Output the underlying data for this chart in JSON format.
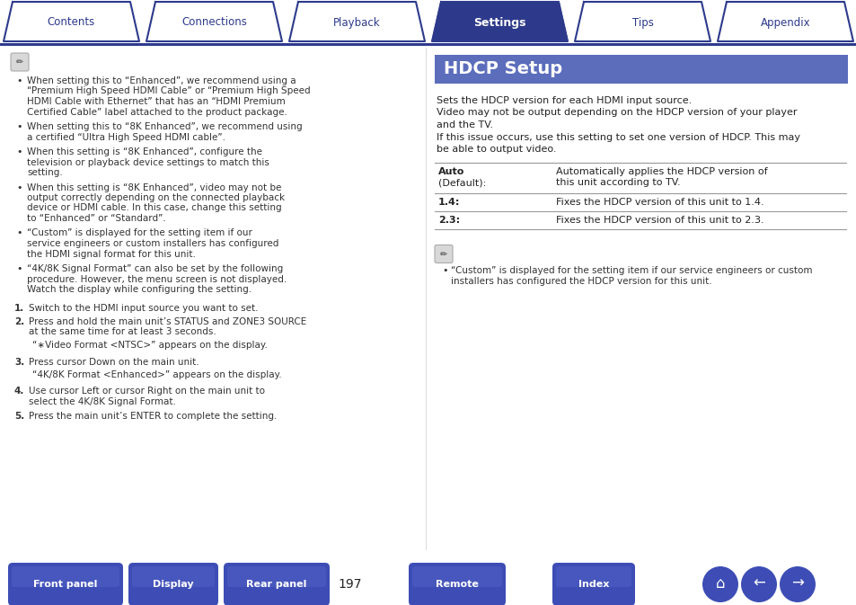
{
  "page_bg": "#ffffff",
  "top_nav": {
    "tabs": [
      "Contents",
      "Connections",
      "Playback",
      "Settings",
      "Tips",
      "Appendix"
    ],
    "active_tab": "Settings",
    "active_color": "#2d3a8c",
    "inactive_color": "#ffffff",
    "tab_text_color_inactive": "#2d3a8c",
    "tab_text_color_active": "#ffffff",
    "border_color": "#2d3a8c",
    "bar_color": "#2d3a8c"
  },
  "bottom_nav": {
    "buttons": [
      "Front panel",
      "Display",
      "Rear panel",
      "Remote",
      "Index"
    ],
    "page_number": "197",
    "button_color": "#3d4db5",
    "button_text_color": "#ffffff"
  },
  "left_panel": {
    "bullet_points": [
      "When setting this to “Enhanced”, we recommend using a “Premium High Speed HDMI Cable” or “Premium High Speed HDMI Cable with Ethernet” that has an “HDMI Premium Certified Cable” label attached to the product package.",
      "When setting this to “8K Enhanced”, we recommend using a certified “Ultra High Speed HDMI cable”.",
      "When this setting is “8K Enhanced”, configure the television or playback device settings to match this setting.",
      "When this setting is “8K Enhanced”, video may not be output correctly depending on the connected playback device or HDMI cable. In this case, change this setting to “Enhanced” or “Standard”.",
      "“Custom” is displayed for the setting item if our service engineers or custom installers has configured the HDMI signal format for this unit.",
      "“4K/8K Signal Format” can also be set by the following procedure. However, the menu screen is not displayed. Watch the display while configuring the setting."
    ],
    "numbered_items": [
      [
        "Switch to the HDMI input source you want to set."
      ],
      [
        "Press and hold the main unit’s STATUS and ZONE3 SOURCE at the same time for at least 3 seconds.",
        "“∗Video Format <NTSC>” appears on the display."
      ],
      [
        "Press cursor Down on the main unit.",
        "“4K/8K Format <Enhanced>” appears on the display."
      ],
      [
        "Use cursor Left or cursor Right on the main unit to select the 4K/8K Signal Format."
      ],
      [
        "Press the main unit’s ENTER to complete the setting."
      ]
    ]
  },
  "right_panel": {
    "title": "HDCP Setup",
    "title_bg": "#5b6dbb",
    "title_text_color": "#ffffff",
    "table_rows": [
      {
        "label1": "Auto",
        "label2": "(Default):",
        "desc1": "Automatically applies the HDCP version of",
        "desc2": "this unit according to TV."
      },
      {
        "label1": "1.4:",
        "label2": null,
        "desc1": "Fixes the HDCP version of this unit to 1.4.",
        "desc2": null
      },
      {
        "label1": "2.3:",
        "label2": null,
        "desc1": "Fixes the HDCP version of this unit to 2.3.",
        "desc2": null
      }
    ],
    "note_bullet": "“Custom” is displayed for the setting item if our service engineers or custom installers has configured the HDCP version for this unit."
  }
}
